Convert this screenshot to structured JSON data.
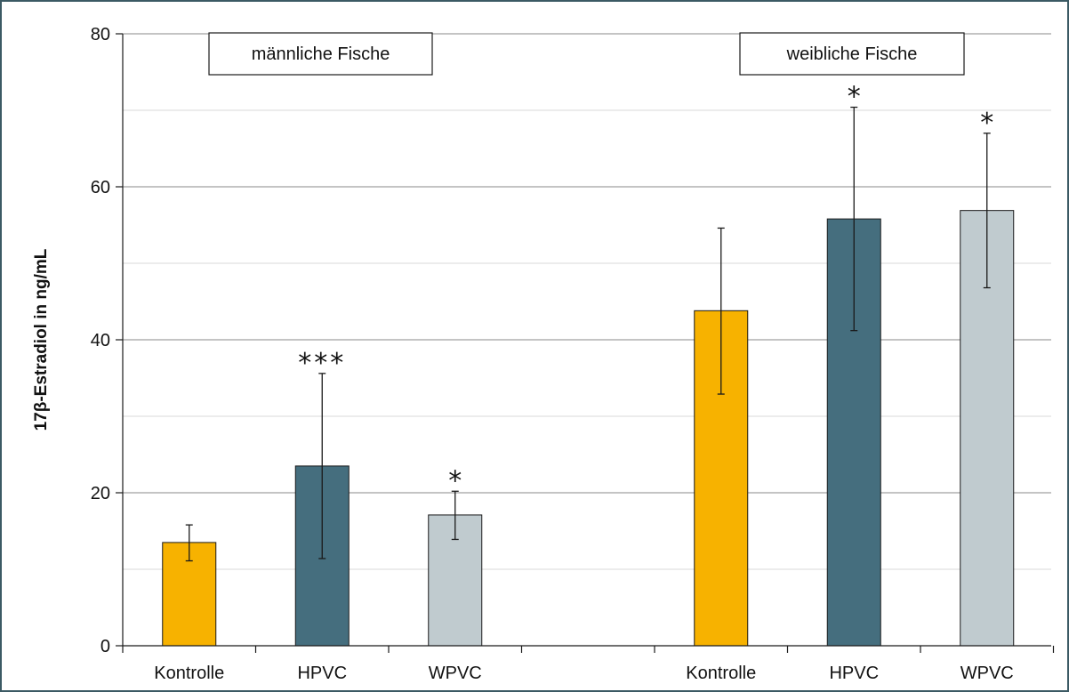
{
  "chart_data": {
    "type": "bar",
    "ylabel": "17β-Estradiol in ng/mL",
    "ylim": [
      0,
      80
    ],
    "yticks": [
      0,
      20,
      40,
      60,
      80
    ],
    "grid": true,
    "groups": [
      {
        "label": "männliche Fische",
        "bars": [
          {
            "category": "Kontrolle",
            "value": 13.5,
            "error_low": 11.1,
            "error_high": 15.8,
            "color": "#f7b200",
            "significance": ""
          },
          {
            "category": "HPVC",
            "value": 23.5,
            "error_low": 11.4,
            "error_high": 35.6,
            "color": "#456e7e",
            "significance": "***"
          },
          {
            "category": "WPVC",
            "value": 17.1,
            "error_low": 13.9,
            "error_high": 20.2,
            "color": "#c0cbcf",
            "significance": "*"
          }
        ]
      },
      {
        "label": "weibliche Fische",
        "bars": [
          {
            "category": "Kontrolle",
            "value": 43.8,
            "error_low": 32.9,
            "error_high": 54.6,
            "color": "#f7b200",
            "significance": ""
          },
          {
            "category": "HPVC",
            "value": 55.8,
            "error_low": 41.2,
            "error_high": 70.4,
            "color": "#456e7e",
            "significance": "*"
          },
          {
            "category": "WPVC",
            "value": 56.9,
            "error_low": 46.8,
            "error_high": 67.0,
            "color": "#c0cbcf",
            "significance": "*"
          }
        ]
      }
    ]
  }
}
